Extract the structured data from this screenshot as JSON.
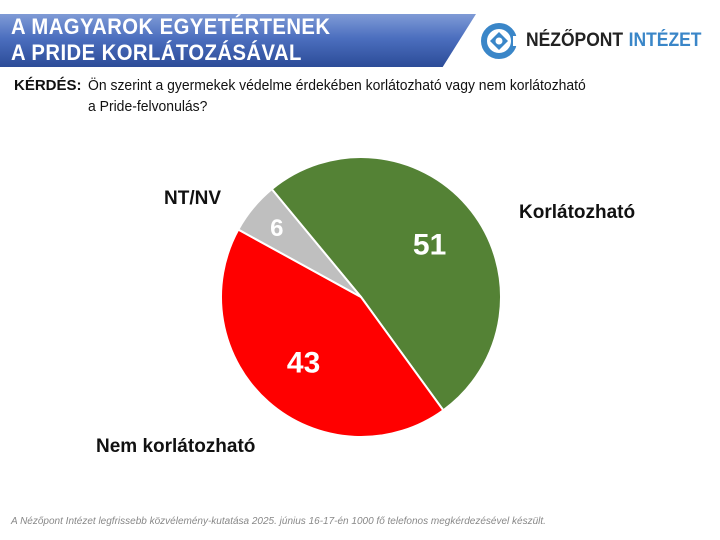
{
  "header": {
    "title_line1": "A MAGYAROK EGYETÉRTENEK",
    "title_line2": "A PRIDE KORLÁTOZÁSÁVAL"
  },
  "logo": {
    "name_part1": "NÉZŐPONT",
    "name_part2": "INTÉZET",
    "color": "#3a86c8"
  },
  "question": {
    "label": "KÉRDÉS:",
    "line1": "Ön szerint a gyermekek védelme érdekében korlátozható vagy nem korlátozható",
    "line2": "a Pride-felvonulás?"
  },
  "footer": "A Nézőpont Intézet legfrissebb közvélemény-kutatása 2025. június 16-17-én 1000 fő telefonos megkérdezésével készült.",
  "chart_data": {
    "type": "pie",
    "unit": "%",
    "slices": [
      {
        "label": "Korlátozható",
        "value": 51,
        "color": "#548235"
      },
      {
        "label": "Nem korlátozható",
        "value": 43,
        "color": "#ff0000"
      },
      {
        "label": "NT/NV",
        "value": 6,
        "color": "#bfbfbf"
      }
    ]
  }
}
